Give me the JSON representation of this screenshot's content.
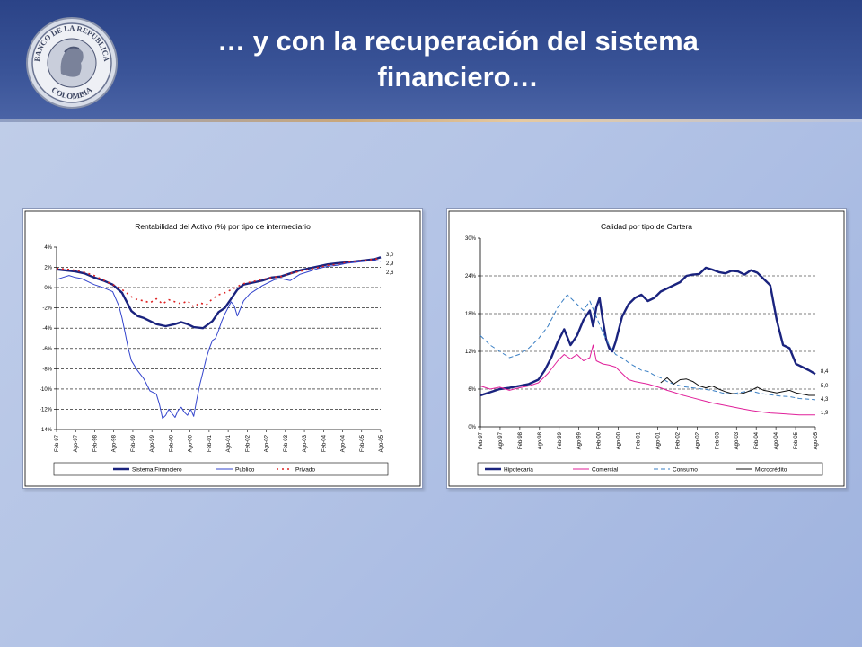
{
  "slide": {
    "title_line1": "… y con la recuperación del sistema",
    "title_line2": "financiero…"
  },
  "logo": {
    "top_text": "BANCO DE LA REPUBLICA",
    "bottom_text": "COLOMBIA"
  },
  "colors": {
    "header": "#2b4387",
    "navy": "#1a237e",
    "blue": "#3344cc",
    "red": "#dd2222",
    "magenta": "#e0209a",
    "dashed_blue": "#3a7fc4",
    "black": "#111111"
  },
  "chart_data": [
    {
      "type": "line",
      "title": "Rentabilidad del Activo (%) por tipo de intermediario",
      "xlabel": "",
      "ylabel": "",
      "ylim": [
        -14,
        4
      ],
      "yticks": [
        4,
        2,
        0,
        -2,
        -4,
        -6,
        -8,
        -10,
        -12,
        -14
      ],
      "ytick_labels": [
        "4%",
        "2%",
        "0%",
        "-2%",
        "-4%",
        "-6%",
        "-8%",
        "-10%",
        "-12%",
        "-14%"
      ],
      "x_labels": [
        "Feb-97",
        "Ago-97",
        "Feb-98",
        "Ago-98",
        "Feb-99",
        "Ago-99",
        "Feb-00",
        "Ago-00",
        "Feb-01",
        "Ago-01",
        "Feb-02",
        "Ago-02",
        "Feb-03",
        "Ago-03",
        "Feb-04",
        "Ago-04",
        "Feb-05",
        "Ago-05"
      ],
      "x_range": [
        0,
        104
      ],
      "grid": "horizontal dashed",
      "legend": "bottom",
      "end_labels": [
        "3,0",
        "2,9",
        "2,6"
      ],
      "series": [
        {
          "name": "Sistema Financiero",
          "style": "solid-thick",
          "x": [
            0,
            3,
            6,
            9,
            12,
            15,
            18,
            21,
            24,
            26,
            28,
            30,
            32,
            35,
            38,
            40,
            42,
            44,
            47,
            50,
            52,
            54,
            56,
            58,
            60,
            63,
            66,
            69,
            72,
            75,
            78,
            81,
            84,
            87,
            90,
            93,
            96,
            99,
            102,
            104
          ],
          "y": [
            1.8,
            1.7,
            1.6,
            1.4,
            1.0,
            0.7,
            0.3,
            -0.5,
            -2.3,
            -2.8,
            -3.0,
            -3.3,
            -3.6,
            -3.8,
            -3.6,
            -3.4,
            -3.6,
            -3.9,
            -4.0,
            -3.3,
            -2.4,
            -2.0,
            -1.1,
            -0.2,
            0.3,
            0.5,
            0.7,
            1.0,
            1.1,
            1.4,
            1.7,
            1.9,
            2.1,
            2.3,
            2.4,
            2.5,
            2.6,
            2.7,
            2.8,
            3.0
          ]
        },
        {
          "name": "Publico",
          "style": "solid-thin",
          "x": [
            0,
            2,
            4,
            6,
            8,
            10,
            12,
            15,
            18,
            20,
            21,
            22,
            23,
            24,
            26,
            28,
            30,
            32,
            33,
            34,
            35,
            36,
            37,
            38,
            39,
            40,
            41,
            42,
            43,
            44,
            45,
            46,
            47,
            48,
            49,
            50,
            51,
            52,
            53,
            54,
            55,
            56,
            57,
            58,
            60,
            62,
            64,
            66,
            68,
            70,
            72,
            75,
            78,
            81,
            84,
            87,
            90,
            93,
            96,
            99,
            102,
            104
          ],
          "y": [
            0.8,
            1.0,
            1.2,
            1.0,
            0.9,
            0.6,
            0.3,
            0.0,
            -0.4,
            -1.8,
            -3.0,
            -4.5,
            -6.0,
            -7.2,
            -8.2,
            -9.0,
            -10.2,
            -10.5,
            -11.5,
            -12.9,
            -12.6,
            -12.0,
            -12.4,
            -12.8,
            -12.1,
            -11.8,
            -12.3,
            -12.6,
            -12.0,
            -12.7,
            -11.0,
            -9.5,
            -8.3,
            -7.0,
            -6.0,
            -5.2,
            -5.0,
            -4.2,
            -3.3,
            -2.6,
            -2.0,
            -1.4,
            -1.8,
            -2.8,
            -1.3,
            -0.6,
            -0.2,
            0.2,
            0.5,
            0.8,
            0.9,
            0.7,
            1.3,
            1.6,
            1.9,
            2.1,
            2.2,
            2.4,
            2.5,
            2.6,
            2.7,
            2.6
          ]
        },
        {
          "name": "Privado",
          "style": "dotted",
          "x": [
            0,
            4,
            8,
            12,
            16,
            20,
            22,
            24,
            26,
            28,
            30,
            32,
            34,
            36,
            38,
            40,
            42,
            44,
            46,
            48,
            50,
            52,
            54,
            56,
            58,
            60,
            63,
            66,
            69,
            72,
            75,
            78,
            81,
            84,
            87,
            90,
            93,
            96,
            99,
            102,
            104
          ],
          "y": [
            1.9,
            1.8,
            1.6,
            1.2,
            0.6,
            0.0,
            -0.4,
            -0.9,
            -1.2,
            -1.3,
            -1.5,
            -1.1,
            -1.6,
            -1.2,
            -1.4,
            -1.6,
            -1.3,
            -1.9,
            -1.5,
            -1.7,
            -1.1,
            -0.7,
            -0.5,
            -0.2,
            0.1,
            0.4,
            0.6,
            0.8,
            1.0,
            1.1,
            1.4,
            1.6,
            1.8,
            2.0,
            2.2,
            2.3,
            2.5,
            2.6,
            2.7,
            2.8,
            2.9
          ]
        }
      ]
    },
    {
      "type": "line",
      "title": "Calidad por tipo de Cartera",
      "xlabel": "",
      "ylabel": "",
      "ylim": [
        0,
        30
      ],
      "yticks": [
        0,
        6,
        12,
        18,
        24,
        30
      ],
      "ytick_labels": [
        "0%",
        "6%",
        "12%",
        "18%",
        "24%",
        "30%"
      ],
      "x_labels": [
        "Feb-97",
        "Ago-97",
        "Feb-98",
        "Ago-98",
        "Feb-99",
        "Ago-99",
        "Feb-00",
        "Ago-00",
        "Feb-01",
        "Ago-01",
        "Feb-02",
        "Ago-02",
        "Feb-03",
        "Ago-03",
        "Feb-04",
        "Ago-04",
        "Feb-05",
        "Ago-05"
      ],
      "x_range": [
        0,
        104
      ],
      "grid": "horizontal dashed",
      "legend": "bottom",
      "end_labels": [
        "8,4",
        "5,0",
        "4,3",
        "1,9"
      ],
      "series": [
        {
          "name": "Hipotecaria",
          "style": "solid-thick",
          "x": [
            0,
            3,
            6,
            9,
            12,
            15,
            18,
            20,
            22,
            24,
            26,
            28,
            30,
            32,
            34,
            35,
            36,
            37,
            38,
            39,
            40,
            41,
            42,
            44,
            46,
            48,
            50,
            52,
            54,
            56,
            58,
            60,
            62,
            64,
            66,
            68,
            70,
            72,
            74,
            76,
            78,
            80,
            82,
            84,
            86,
            88,
            90,
            92,
            94,
            96,
            98,
            100,
            102,
            104
          ],
          "y": [
            5.0,
            5.5,
            6.0,
            6.2,
            6.5,
            6.8,
            7.5,
            9.0,
            11.0,
            13.5,
            15.5,
            13.0,
            14.5,
            17.0,
            18.5,
            16.0,
            19.0,
            20.5,
            17.0,
            14.0,
            12.5,
            12.0,
            13.5,
            17.5,
            19.5,
            20.5,
            21.0,
            20.0,
            20.5,
            21.5,
            22.0,
            22.5,
            23.0,
            24.0,
            24.2,
            24.3,
            25.3,
            25.0,
            24.6,
            24.4,
            24.8,
            24.7,
            24.2,
            24.9,
            24.5,
            23.5,
            22.5,
            17.0,
            13.0,
            12.5,
            10.0,
            9.5,
            9.0,
            8.4
          ]
        },
        {
          "name": "Comercial",
          "style": "solid-thin",
          "x": [
            0,
            3,
            6,
            9,
            12,
            15,
            18,
            21,
            24,
            26,
            28,
            30,
            32,
            34,
            35,
            36,
            38,
            40,
            42,
            44,
            46,
            48,
            50,
            52,
            54,
            56,
            58,
            60,
            63,
            66,
            69,
            72,
            75,
            78,
            81,
            84,
            87,
            90,
            93,
            96,
            99,
            102,
            104
          ],
          "y": [
            6.5,
            6.0,
            6.3,
            5.8,
            6.2,
            6.5,
            7.0,
            8.5,
            10.5,
            11.5,
            10.8,
            11.5,
            10.5,
            11.0,
            13.0,
            10.5,
            10.0,
            9.8,
            9.5,
            8.5,
            7.5,
            7.2,
            7.0,
            6.8,
            6.5,
            6.2,
            5.8,
            5.5,
            5.0,
            4.6,
            4.2,
            3.8,
            3.5,
            3.2,
            2.9,
            2.6,
            2.4,
            2.2,
            2.1,
            2.0,
            1.9,
            1.9,
            1.9
          ]
        },
        {
          "name": "Consumo",
          "style": "dashed",
          "x": [
            0,
            3,
            6,
            9,
            12,
            15,
            18,
            21,
            24,
            27,
            30,
            32,
            34,
            36,
            38,
            40,
            42,
            44,
            46,
            48,
            50,
            52,
            54,
            56,
            58,
            60,
            63,
            66,
            69,
            72,
            75,
            78,
            81,
            84,
            87,
            90,
            93,
            96,
            99,
            102,
            104
          ],
          "y": [
            14.5,
            13.0,
            12.0,
            11.0,
            11.5,
            12.5,
            14.0,
            16.0,
            19.0,
            21.0,
            19.5,
            18.5,
            20.0,
            17.5,
            15.0,
            13.0,
            11.5,
            11.0,
            10.2,
            9.6,
            9.0,
            8.8,
            8.2,
            7.8,
            7.2,
            6.8,
            6.4,
            6.2,
            6.0,
            5.8,
            5.4,
            5.2,
            5.5,
            5.7,
            5.3,
            5.1,
            4.9,
            4.8,
            4.5,
            4.4,
            4.3
          ]
        },
        {
          "name": "Microcrédito",
          "style": "solid-black",
          "x": [
            56,
            58,
            60,
            62,
            64,
            66,
            68,
            70,
            72,
            74,
            76,
            78,
            80,
            82,
            84,
            86,
            88,
            90,
            92,
            94,
            96,
            98,
            100,
            102,
            104
          ],
          "y": [
            7.0,
            7.8,
            6.8,
            7.5,
            7.6,
            7.2,
            6.5,
            6.2,
            6.5,
            6.0,
            5.6,
            5.3,
            5.2,
            5.4,
            5.8,
            6.3,
            5.8,
            5.6,
            5.4,
            5.6,
            5.8,
            5.4,
            5.2,
            5.0,
            5.0
          ]
        }
      ]
    }
  ]
}
